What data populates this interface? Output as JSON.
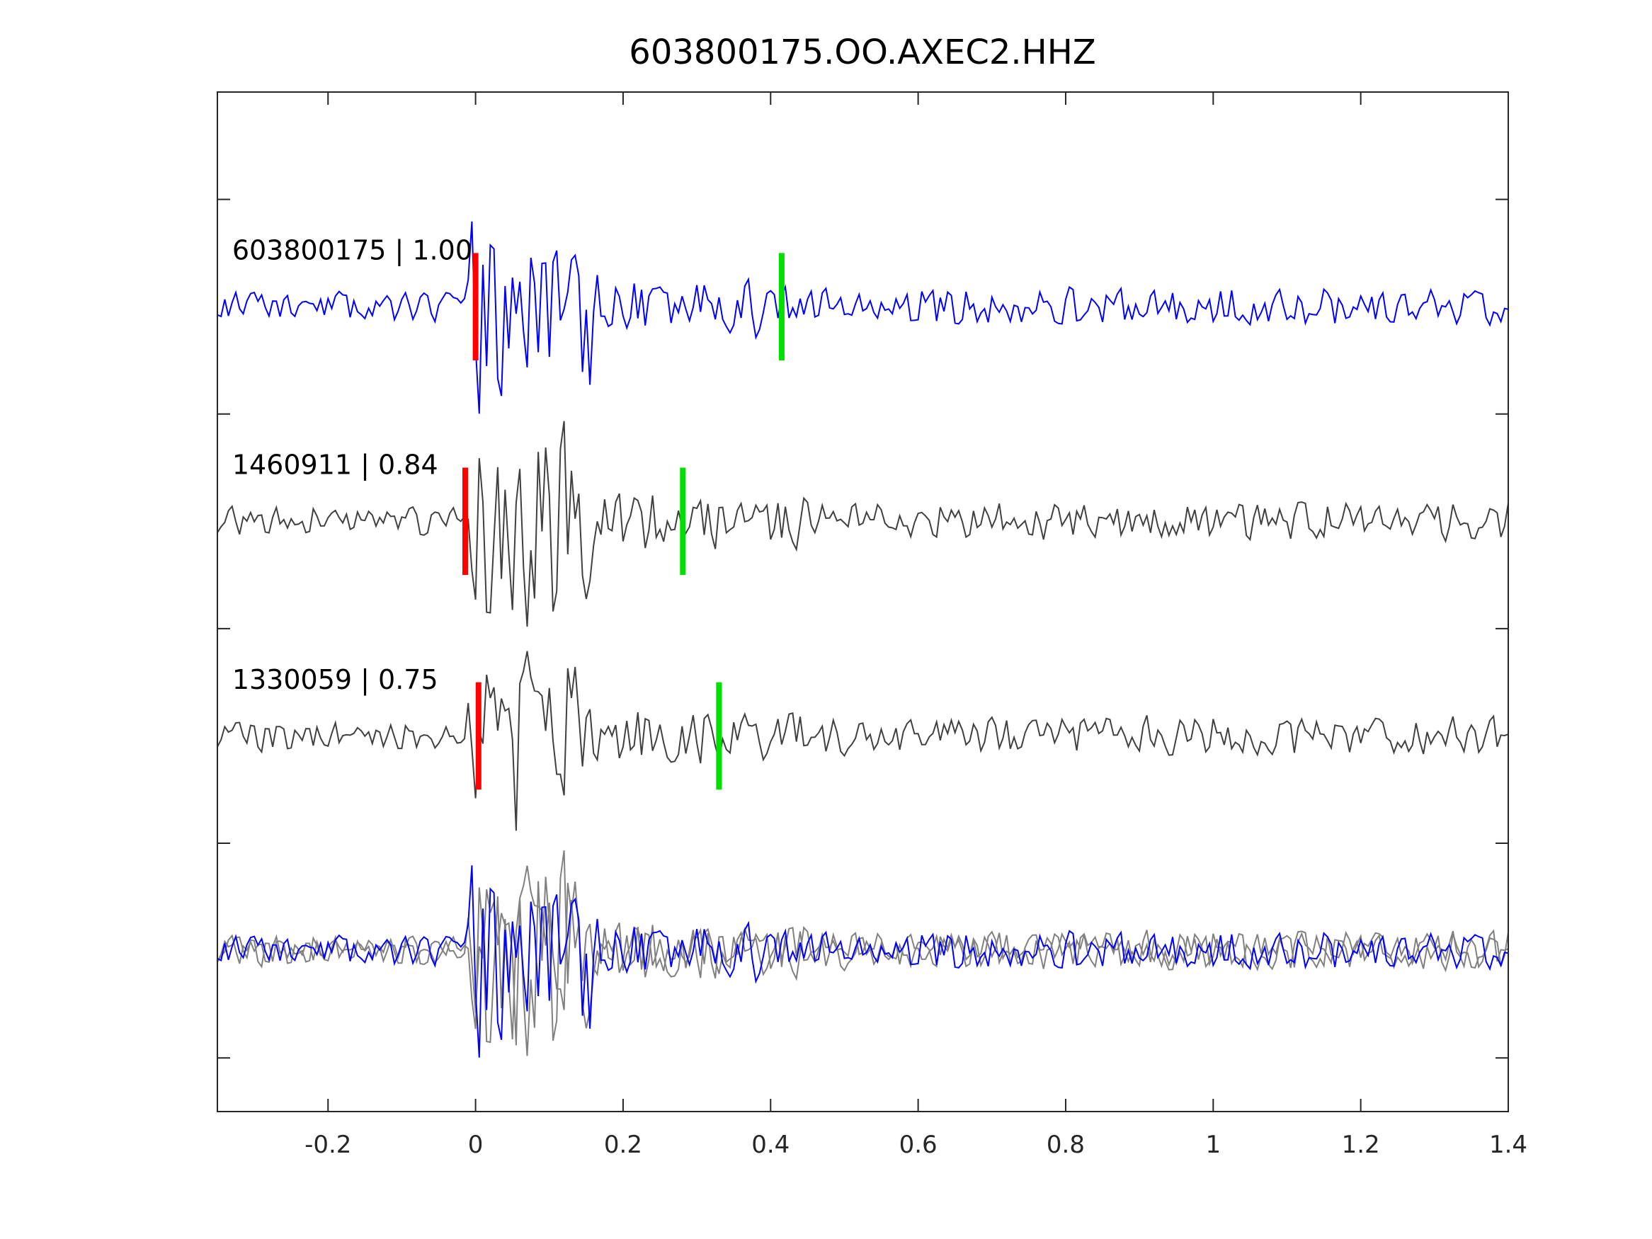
{
  "chart_data": {
    "type": "line",
    "title": "603800175.OO.AXEC2.HHZ",
    "xlabel": "",
    "ylabel": "",
    "xlim": [
      -0.35,
      1.4
    ],
    "ylim": [
      -3.75,
      1.0
    ],
    "xticks": [
      -0.2,
      0,
      0.2,
      0.4,
      0.6,
      0.8,
      1,
      1.2,
      1.4
    ],
    "xtick_labels": [
      "-0.2",
      "0",
      "0.2",
      "0.4",
      "0.6",
      "0.8",
      "1",
      "1.2",
      "1.4"
    ],
    "yticks": [
      0.5,
      -0.5,
      -1.5,
      -2.5,
      -3.5
    ],
    "grid": false,
    "traces": [
      {
        "id": "603800175",
        "label": "603800175 | 1.00",
        "offset": 0,
        "color": "#0000ff",
        "seed": 11,
        "p_pick": 0.0,
        "s_pick": 0.415
      },
      {
        "id": "1460911",
        "label": "1460911 | 0.84",
        "offset": -1,
        "color": "#404040",
        "seed": 23,
        "p_pick": -0.014,
        "s_pick": 0.281
      },
      {
        "id": "1330059",
        "label": "1330059 | 0.75",
        "offset": -2,
        "color": "#404040",
        "seed": 37,
        "p_pick": 0.004,
        "s_pick": 0.33
      }
    ],
    "overlay": {
      "offset": -3,
      "series": [
        {
          "id": "1460911",
          "color": "#808080",
          "seed": 23
        },
        {
          "id": "1330059",
          "color": "#808080",
          "seed": 37
        },
        {
          "id": "603800175",
          "color": "#0000ff",
          "seed": 11
        }
      ]
    },
    "pick_colors": {
      "p": "#ff0000",
      "s": "#00e000"
    },
    "pick_half_height": 0.25
  }
}
